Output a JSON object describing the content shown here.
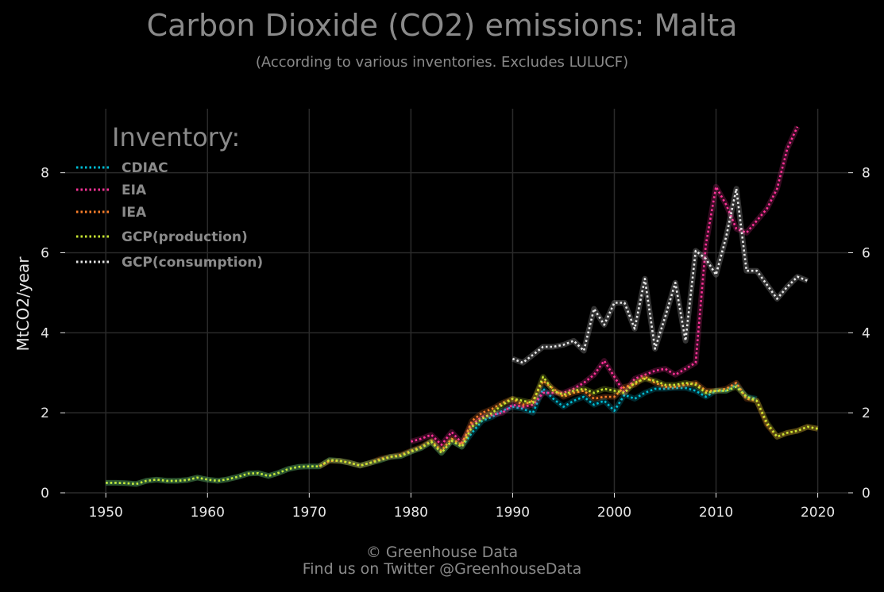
{
  "header": {
    "title": "Carbon Dioxide (CO2) emissions: Malta",
    "subtitle": "(According to various inventories. Excludes LULUCF)"
  },
  "footer": {
    "line1": "© Greenhouse Data",
    "line2": "Find us on Twitter @GreenhouseData"
  },
  "chart_data": {
    "type": "line",
    "title": "Carbon Dioxide (CO2) emissions: Malta",
    "subtitle": "(According to various inventories. Excludes LULUCF)",
    "xlabel": "",
    "ylabel": "MtCO2/year",
    "xlim": [
      1946,
      2023
    ],
    "ylim": [
      0,
      9.6
    ],
    "x_ticks": [
      1950,
      1960,
      1970,
      1980,
      1990,
      2000,
      2010,
      2020
    ],
    "y_ticks": [
      0,
      2,
      4,
      6,
      8
    ],
    "grid": true,
    "legend": {
      "title": "Inventory:",
      "placement": "top-left"
    },
    "series": [
      {
        "name": "CDIAC",
        "color": "#00bcd4",
        "x": [
          1950,
          1951,
          1952,
          1953,
          1954,
          1955,
          1956,
          1957,
          1958,
          1959,
          1960,
          1961,
          1962,
          1963,
          1964,
          1965,
          1966,
          1967,
          1968,
          1969,
          1970,
          1971,
          1972,
          1973,
          1974,
          1975,
          1976,
          1977,
          1978,
          1979,
          1980,
          1981,
          1982,
          1983,
          1984,
          1985,
          1986,
          1987,
          1988,
          1989,
          1990,
          1991,
          1992,
          1993,
          1994,
          1995,
          1996,
          1997,
          1998,
          1999,
          2000,
          2001,
          2002,
          2003,
          2004,
          2005,
          2006,
          2007,
          2008,
          2009,
          2010,
          2011,
          2012,
          2013,
          2014
        ],
        "y": [
          0.25,
          0.25,
          0.24,
          0.22,
          0.3,
          0.33,
          0.3,
          0.3,
          0.32,
          0.38,
          0.33,
          0.3,
          0.34,
          0.4,
          0.48,
          0.49,
          0.42,
          0.5,
          0.6,
          0.65,
          0.66,
          0.66,
          0.82,
          0.8,
          0.75,
          0.68,
          0.75,
          0.82,
          0.9,
          0.92,
          1.03,
          1.12,
          1.28,
          1.0,
          1.3,
          1.15,
          1.5,
          1.8,
          1.9,
          2.05,
          2.15,
          2.1,
          2.0,
          2.6,
          2.35,
          2.15,
          2.3,
          2.4,
          2.2,
          2.3,
          2.05,
          2.45,
          2.35,
          2.5,
          2.6,
          2.6,
          2.62,
          2.62,
          2.55,
          2.4,
          2.55,
          2.55,
          2.7,
          2.4,
          2.35
        ]
      },
      {
        "name": "EIA",
        "color": "#ff3399",
        "x": [
          1980,
          1981,
          1982,
          1983,
          1984,
          1985,
          1986,
          1987,
          1988,
          1989,
          1990,
          1991,
          1992,
          1993,
          1994,
          1995,
          1996,
          1997,
          1998,
          1999,
          2000,
          2001,
          2002,
          2003,
          2004,
          2005,
          2006,
          2007,
          2008,
          2009,
          2010,
          2011,
          2012,
          2013,
          2014,
          2015,
          2016,
          2017,
          2018
        ],
        "y": [
          1.28,
          1.35,
          1.45,
          1.2,
          1.52,
          1.25,
          1.7,
          1.9,
          1.95,
          2.0,
          2.2,
          2.15,
          2.2,
          2.5,
          2.5,
          2.5,
          2.6,
          2.75,
          2.95,
          3.3,
          2.9,
          2.5,
          2.85,
          2.95,
          3.05,
          3.1,
          2.95,
          3.1,
          3.25,
          6.2,
          7.65,
          7.2,
          6.6,
          6.5,
          6.8,
          7.1,
          7.6,
          8.6,
          9.15
        ]
      },
      {
        "name": "IEA",
        "color": "#ff7f2a",
        "x": [
          1971,
          1972,
          1973,
          1974,
          1975,
          1976,
          1977,
          1978,
          1979,
          1980,
          1981,
          1982,
          1983,
          1984,
          1985,
          1986,
          1987,
          1988,
          1989,
          1990,
          1991,
          1992,
          1993,
          1994,
          1995,
          1996,
          1997,
          1998,
          1999,
          2000,
          2001,
          2002,
          2003,
          2004,
          2005,
          2006,
          2007,
          2008,
          2009,
          2010,
          2011,
          2012,
          2013,
          2014,
          2015,
          2016,
          2017,
          2018,
          2019,
          2020
        ],
        "y": [
          0.66,
          0.8,
          0.8,
          0.75,
          0.68,
          0.75,
          0.85,
          0.9,
          0.95,
          1.05,
          1.15,
          1.3,
          1.05,
          1.35,
          1.2,
          1.8,
          2.0,
          2.1,
          2.25,
          2.35,
          2.2,
          2.3,
          2.8,
          2.6,
          2.4,
          2.5,
          2.55,
          2.35,
          2.4,
          2.4,
          2.65,
          2.7,
          2.9,
          2.75,
          2.65,
          2.65,
          2.7,
          2.75,
          2.55,
          2.55,
          2.6,
          2.75,
          2.35,
          2.3,
          1.7,
          1.4,
          1.5,
          1.55,
          1.65,
          1.6
        ]
      },
      {
        "name": "GCP(production)",
        "color": "#c8e632",
        "x": [
          1950,
          1951,
          1952,
          1953,
          1954,
          1955,
          1956,
          1957,
          1958,
          1959,
          1960,
          1961,
          1962,
          1963,
          1964,
          1965,
          1966,
          1967,
          1968,
          1969,
          1970,
          1971,
          1972,
          1973,
          1974,
          1975,
          1976,
          1977,
          1978,
          1979,
          1980,
          1981,
          1982,
          1983,
          1984,
          1985,
          1986,
          1987,
          1988,
          1989,
          1990,
          1991,
          1992,
          1993,
          1994,
          1995,
          1996,
          1997,
          1998,
          1999,
          2000,
          2001,
          2002,
          2003,
          2004,
          2005,
          2006,
          2007,
          2008,
          2009,
          2010,
          2011,
          2012,
          2013,
          2014,
          2015,
          2016,
          2017,
          2018,
          2019,
          2020
        ],
        "y": [
          0.25,
          0.25,
          0.24,
          0.22,
          0.3,
          0.33,
          0.3,
          0.3,
          0.32,
          0.38,
          0.33,
          0.3,
          0.34,
          0.4,
          0.48,
          0.49,
          0.42,
          0.5,
          0.6,
          0.65,
          0.66,
          0.66,
          0.82,
          0.8,
          0.75,
          0.68,
          0.75,
          0.82,
          0.9,
          0.92,
          1.03,
          1.12,
          1.28,
          1.0,
          1.3,
          1.15,
          1.65,
          1.85,
          2.0,
          2.2,
          2.35,
          2.3,
          2.25,
          2.9,
          2.55,
          2.45,
          2.55,
          2.6,
          2.5,
          2.6,
          2.55,
          2.5,
          2.75,
          2.85,
          2.8,
          2.7,
          2.7,
          2.75,
          2.7,
          2.5,
          2.55,
          2.55,
          2.65,
          2.4,
          2.3,
          1.75,
          1.4,
          1.5,
          1.55,
          1.65,
          1.6
        ]
      },
      {
        "name": "GCP(consumption)",
        "color": "#e8e8e8",
        "x": [
          1990,
          1991,
          1992,
          1993,
          1994,
          1995,
          1996,
          1997,
          1998,
          1999,
          2000,
          2001,
          2002,
          2003,
          2004,
          2005,
          2006,
          2007,
          2008,
          2009,
          2010,
          2011,
          2012,
          2013,
          2014,
          2015,
          2016,
          2017,
          2018,
          2019
        ],
        "y": [
          3.35,
          3.25,
          3.45,
          3.65,
          3.65,
          3.7,
          3.8,
          3.55,
          4.6,
          4.2,
          4.75,
          4.75,
          4.1,
          5.35,
          3.6,
          4.4,
          5.25,
          3.8,
          6.05,
          5.85,
          5.45,
          6.4,
          7.6,
          5.55,
          5.55,
          5.2,
          4.85,
          5.15,
          5.4,
          5.3
        ]
      }
    ]
  }
}
